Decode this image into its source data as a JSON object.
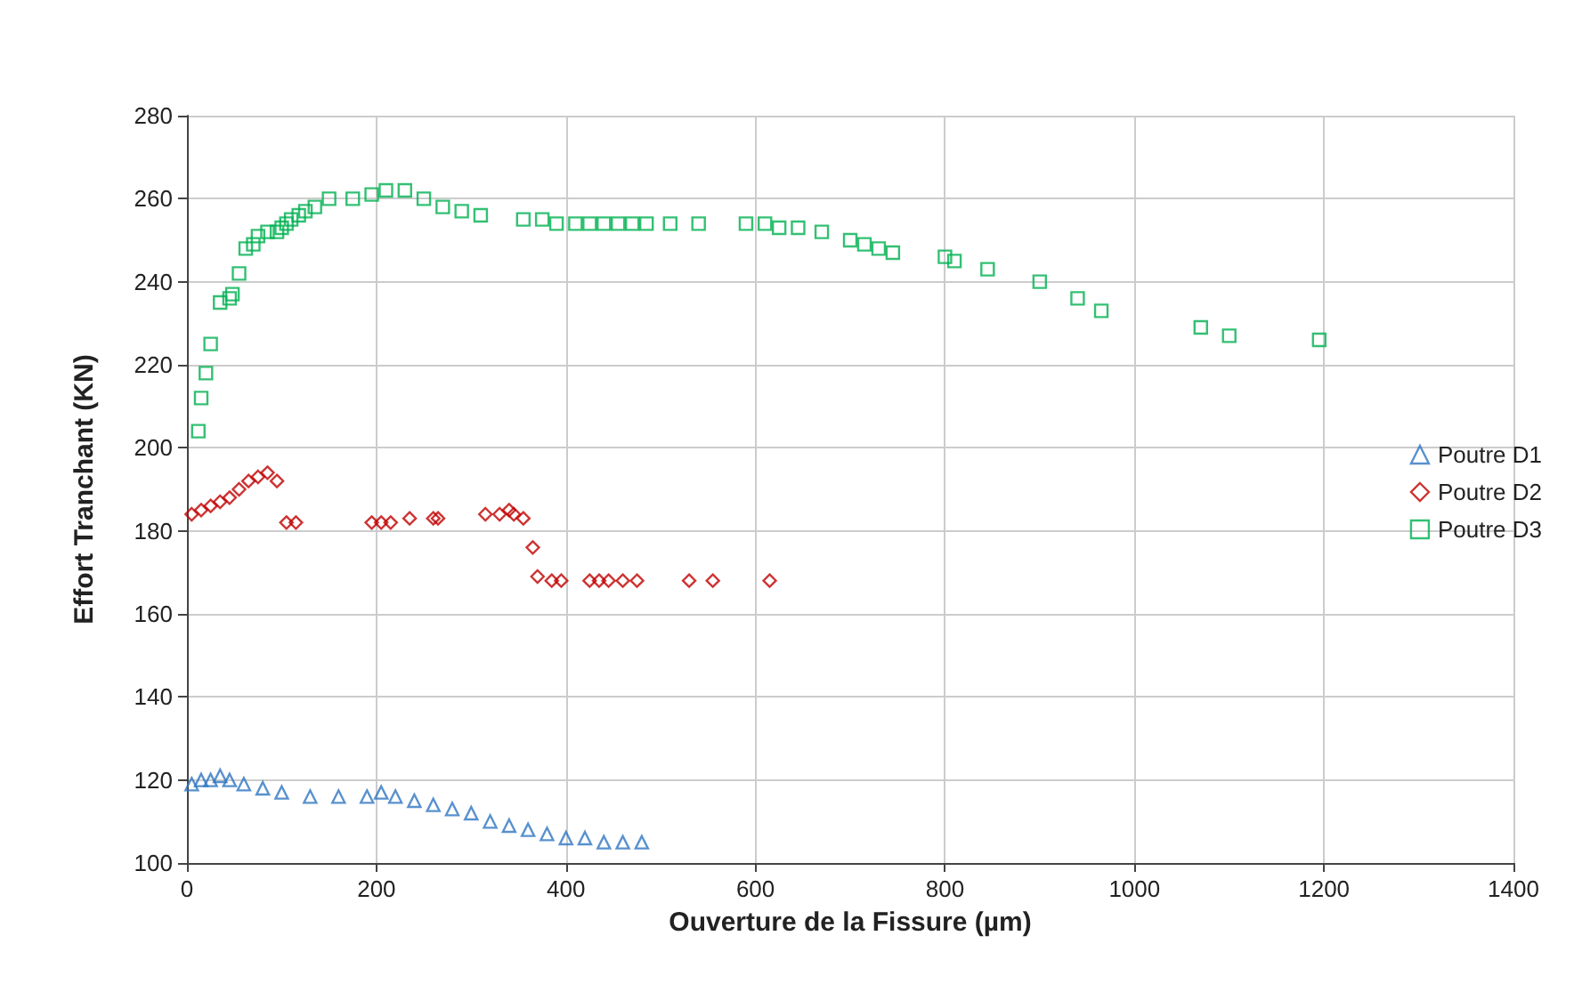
{
  "chart_data": {
    "type": "scatter",
    "xlabel": "Ouverture de la Fissure (µm)",
    "ylabel": "Effort Tranchant (KN)",
    "xlim": [
      0,
      1400
    ],
    "xticks": [
      0,
      200,
      400,
      600,
      800,
      1000,
      1200,
      1400
    ],
    "ylim": [
      100,
      280
    ],
    "yticks": [
      100,
      120,
      140,
      160,
      180,
      200,
      220,
      240,
      260,
      280
    ],
    "grid": true,
    "legend": "right",
    "series": [
      {
        "name": "Poutre D1",
        "color": "#2e75c2",
        "marker": "triangle",
        "x": [
          5,
          15,
          25,
          35,
          45,
          60,
          80,
          100,
          130,
          160,
          190,
          205,
          220,
          240,
          260,
          280,
          300,
          320,
          340,
          360,
          380,
          400,
          420,
          440,
          460,
          480
        ],
        "values": [
          119,
          120,
          120,
          121,
          120,
          119,
          118,
          117,
          116,
          116,
          116,
          117,
          116,
          115,
          114,
          113,
          112,
          110,
          109,
          108,
          107,
          106,
          106,
          105,
          105,
          105
        ]
      },
      {
        "name": "Poutre D2",
        "color": "#c00000",
        "marker": "diamond",
        "x": [
          5,
          15,
          25,
          35,
          45,
          55,
          65,
          75,
          85,
          95,
          105,
          115,
          195,
          205,
          215,
          235,
          260,
          265,
          315,
          330,
          340,
          345,
          355,
          365,
          370,
          385,
          395,
          425,
          435,
          445,
          460,
          475,
          530,
          555,
          615
        ],
        "values": [
          184,
          185,
          186,
          187,
          188,
          190,
          192,
          193,
          194,
          192,
          182,
          182,
          182,
          182,
          182,
          183,
          183,
          183,
          184,
          184,
          185,
          184,
          183,
          176,
          169,
          168,
          168,
          168,
          168,
          168,
          168,
          168,
          168,
          168,
          168
        ]
      },
      {
        "name": "Poutre D3",
        "color": "#00b050",
        "marker": "square",
        "x": [
          12,
          15,
          20,
          25,
          35,
          45,
          48,
          55,
          62,
          70,
          75,
          85,
          95,
          100,
          105,
          110,
          118,
          125,
          135,
          150,
          175,
          195,
          210,
          230,
          250,
          270,
          290,
          310,
          355,
          375,
          390,
          410,
          425,
          440,
          455,
          470,
          485,
          510,
          540,
          590,
          610,
          625,
          645,
          670,
          700,
          715,
          730,
          745,
          800,
          810,
          845,
          900,
          940,
          965,
          1070,
          1100,
          1195
        ],
        "values": [
          204,
          212,
          218,
          225,
          235,
          236,
          237,
          242,
          248,
          249,
          251,
          252,
          252,
          253,
          254,
          255,
          256,
          257,
          258,
          260,
          260,
          261,
          262,
          262,
          260,
          258,
          257,
          256,
          255,
          255,
          254,
          254,
          254,
          254,
          254,
          254,
          254,
          254,
          254,
          254,
          254,
          253,
          253,
          252,
          250,
          249,
          248,
          247,
          246,
          245,
          243,
          240,
          236,
          233,
          229,
          227,
          226
        ]
      }
    ]
  }
}
